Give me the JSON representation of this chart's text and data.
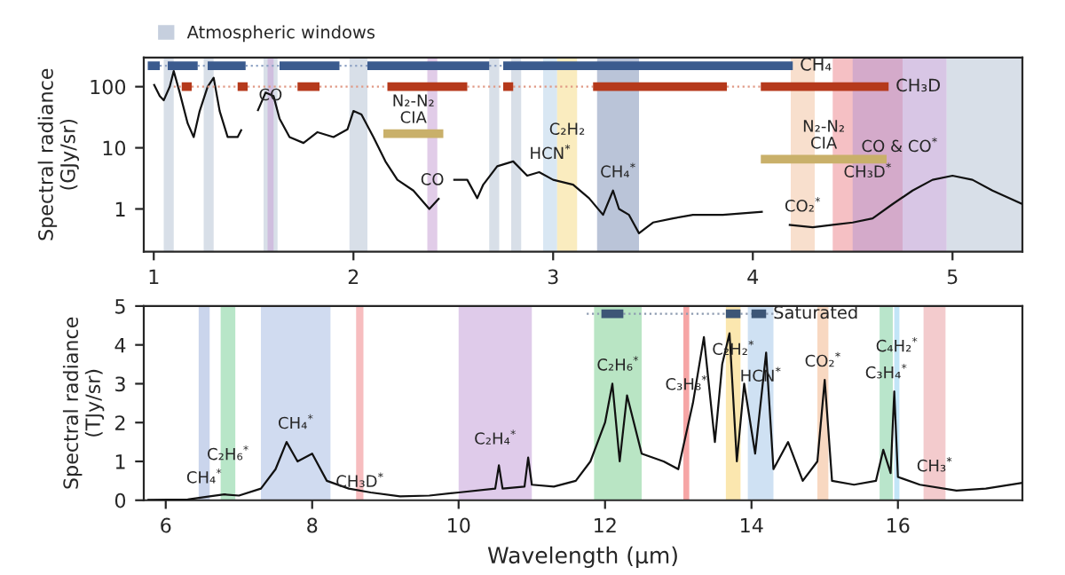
{
  "chart_data": [
    {
      "type": "line",
      "ylabel": "Spectral radiance\n(GJy/sr)",
      "log": "y",
      "xlim": [
        0.95,
        5.35
      ],
      "xticks": [
        1,
        2,
        3,
        4,
        5
      ],
      "ylim": [
        0.2,
        300
      ],
      "yticks": [
        1,
        10,
        100
      ],
      "grid": false,
      "legend": "top left",
      "marker": "none",
      "series": [
        {
          "color": "#111111",
          "x": [
            1.0,
            1.03,
            1.05,
            1.08,
            1.1,
            1.13,
            1.17,
            1.2,
            1.23,
            1.27,
            1.3,
            1.33,
            1.37,
            1.42,
            1.44,
            1.47,
            1.52,
            1.56,
            1.6,
            1.63,
            1.68,
            1.75,
            1.82,
            1.9,
            1.97,
            2.0,
            2.04,
            2.1,
            2.16,
            2.22,
            2.3,
            2.38,
            2.43,
            2.46,
            2.5,
            2.57,
            2.62,
            2.65,
            2.72,
            2.8,
            2.87,
            2.93,
            3.0,
            3.1,
            3.18,
            3.25,
            3.3,
            3.33,
            3.38,
            3.43,
            3.5,
            3.6,
            3.7,
            3.85,
            4.05,
            4.12,
            4.18,
            4.3,
            4.4,
            4.5,
            4.6,
            4.7,
            4.8,
            4.9,
            5.0,
            5.1,
            5.2,
            5.35
          ],
          "values": [
            110,
            70,
            60,
            100,
            180,
            80,
            25,
            15,
            40,
            100,
            140,
            40,
            15,
            15,
            20,
            null,
            40,
            80,
            70,
            30,
            15,
            12,
            18,
            15,
            20,
            40,
            35,
            15,
            6,
            3,
            2,
            1,
            1.5,
            null,
            3,
            3,
            1.5,
            2.5,
            5,
            6,
            3.5,
            4,
            3,
            2.5,
            1.5,
            0.8,
            2,
            1,
            0.8,
            0.4,
            0.6,
            0.7,
            0.8,
            0.8,
            0.9,
            null,
            0.55,
            0.5,
            0.55,
            0.6,
            0.7,
            1.2,
            2,
            3,
            3.5,
            3,
            2,
            1.2
          ]
        },
        {
          "color": "#8fa3c4",
          "line_style": "dotted",
          "x": [
            1.03,
            1.07,
            1.075,
            1.22,
            1.27,
            1.275,
            1.46,
            1.63,
            1.635,
            1.93,
            2.07,
            2.075,
            2.68,
            2.75
          ],
          "values": [
            220,
            220,
            null,
            220,
            220,
            null,
            220,
            220,
            null,
            220,
            220,
            null,
            220,
            220
          ]
        },
        {
          "color": "#3b5b8e",
          "name": "CH₄",
          "x": [
            0.97,
            1.03,
            1.035,
            1.07,
            1.22,
            1.225,
            1.27,
            1.46,
            1.465,
            1.63,
            1.93,
            1.935,
            2.07,
            2.68,
            2.685,
            2.75,
            4.2
          ],
          "values": [
            220,
            220,
            null,
            220,
            220,
            null,
            220,
            220,
            null,
            220,
            220,
            null,
            220,
            220,
            null,
            220,
            220
          ]
        },
        {
          "color": "#e09a86",
          "line_style": "dotted",
          "x": [
            1.1,
            1.14,
            1.145,
            1.19,
            1.42,
            1.425,
            1.47,
            1.72,
            1.725,
            1.83,
            2.17,
            2.175,
            2.57,
            2.75,
            2.755,
            2.8,
            3.2,
            3.205,
            3.87,
            4.04
          ],
          "values": [
            100,
            100,
            null,
            100,
            100,
            null,
            100,
            100,
            null,
            100,
            100,
            null,
            100,
            100,
            null,
            100,
            100,
            null,
            100,
            100
          ]
        },
        {
          "color": "#b5391b",
          "name": "CH₃D",
          "x": [
            1.14,
            1.19,
            1.195,
            1.42,
            1.47,
            1.475,
            1.72,
            1.83,
            1.835,
            2.17,
            2.57,
            2.575,
            2.75,
            2.8,
            2.805,
            3.2,
            3.87,
            3.875,
            4.04,
            4.68
          ],
          "values": [
            100,
            100,
            null,
            100,
            100,
            null,
            100,
            100,
            null,
            100,
            100,
            null,
            100,
            100,
            null,
            100,
            100,
            null,
            100,
            100
          ]
        },
        {
          "color": "#c9b06a",
          "name": "N₂-N₂\nCIA",
          "x": [
            2.15,
            2.45
          ],
          "values": [
            17,
            17
          ]
        },
        {
          "color": "#c9b06a",
          "name": "N₂-N₂\nCIA",
          "x": [
            4.04,
            4.67
          ],
          "values": [
            6.5,
            6.5
          ]
        }
      ],
      "bands": [
        {
          "axis": "x",
          "from": 1.05,
          "to": 1.1,
          "color": "#b8c4d6",
          "label": "Atmospheric windows"
        },
        {
          "axis": "x",
          "from": 1.25,
          "to": 1.3,
          "color": "#b8c4d6"
        },
        {
          "axis": "x",
          "from": 1.55,
          "to": 1.62,
          "color": "#b8c4d6"
        },
        {
          "axis": "x",
          "from": 1.98,
          "to": 2.07,
          "color": "#b8c4d6"
        },
        {
          "axis": "x",
          "from": 2.68,
          "to": 2.73,
          "color": "#b8c4d6"
        },
        {
          "axis": "x",
          "from": 2.79,
          "to": 2.84,
          "color": "#b8c4d6"
        },
        {
          "axis": "x",
          "from": 4.97,
          "to": 5.35,
          "color": "#b8c4d6"
        },
        {
          "axis": "x",
          "from": 1.57,
          "to": 1.6,
          "color": "#c9a3d6",
          "label": "CO"
        },
        {
          "axis": "x",
          "from": 2.37,
          "to": 2.42,
          "color": "#c9a3d6",
          "label": "CO"
        },
        {
          "axis": "x",
          "from": 2.95,
          "to": 3.02,
          "color": "#b9d3ea",
          "label": "HCN$^{*}$"
        },
        {
          "axis": "x",
          "from": 3.02,
          "to": 3.12,
          "color": "#f5dc8a",
          "label": "C₂H₂"
        },
        {
          "axis": "x",
          "from": 3.22,
          "to": 3.43,
          "color": "#8293b8",
          "label": "CH₄$^{*}$"
        },
        {
          "axis": "x",
          "from": 4.19,
          "to": 4.31,
          "color": "#f2c4a4",
          "label": "CO₂$^{*}$"
        },
        {
          "axis": "x",
          "from": 4.4,
          "to": 4.75,
          "color": "#ec8d93",
          "label": "CH₃D$^{*}$"
        },
        {
          "axis": "x",
          "from": 4.5,
          "to": 4.97,
          "color": "#b898d0",
          "label": "CO & CO$^{*}$"
        }
      ]
    },
    {
      "type": "line",
      "xlabel": "Wavelength (µm)",
      "ylabel": "Spectral radiance\n(TJy/sr)",
      "xlim": [
        5.7,
        17.7
      ],
      "xticks": [
        6,
        8,
        10,
        12,
        14,
        16
      ],
      "ylim": [
        0,
        5
      ],
      "yticks": [
        0,
        1,
        2,
        3,
        4,
        5
      ],
      "grid": false,
      "legend": false,
      "marker": "none",
      "series": [
        {
          "color": "#111111",
          "x": [
            5.75,
            6.3,
            6.6,
            6.8,
            7.0,
            7.3,
            7.5,
            7.65,
            7.8,
            8.0,
            8.2,
            8.5,
            8.8,
            9.2,
            9.6,
            10.0,
            10.5,
            10.55,
            10.6,
            10.9,
            10.95,
            11.0,
            11.3,
            11.6,
            11.8,
            12.0,
            12.1,
            12.2,
            12.3,
            12.5,
            12.8,
            13.0,
            13.2,
            13.35,
            13.5,
            13.6,
            13.7,
            13.8,
            13.9,
            14.05,
            14.2,
            14.3,
            14.5,
            14.7,
            14.9,
            15.0,
            15.1,
            15.4,
            15.7,
            15.8,
            15.9,
            15.95,
            16.0,
            16.3,
            16.8,
            17.2,
            17.7
          ],
          "values": [
            0.01,
            0.02,
            0.1,
            0.15,
            0.12,
            0.3,
            0.8,
            1.5,
            1.0,
            1.2,
            0.5,
            0.3,
            0.2,
            0.1,
            0.12,
            0.2,
            0.3,
            0.9,
            0.3,
            0.35,
            1.1,
            0.4,
            0.35,
            0.5,
            1.0,
            2.0,
            3.0,
            1.0,
            2.7,
            1.2,
            1.0,
            0.8,
            2.5,
            4.2,
            1.5,
            3.5,
            4.3,
            1.0,
            3.0,
            1.2,
            3.8,
            0.8,
            1.5,
            0.5,
            1.0,
            3.1,
            0.5,
            0.4,
            0.5,
            1.3,
            0.7,
            2.8,
            0.6,
            0.4,
            0.25,
            0.3,
            0.45
          ]
        },
        {
          "color": "#8d9bb0",
          "line_style": "dotted",
          "x": [
            11.75,
            11.95,
            11.955,
            12.25,
            13.65,
            13.655,
            13.85,
            14.0,
            14.005,
            14.2,
            14.35
          ],
          "values": [
            4.8,
            4.8,
            null,
            4.8,
            4.8,
            null,
            4.8,
            4.8,
            null,
            4.8,
            4.8
          ]
        },
        {
          "color": "#3d5676",
          "name": "Saturated",
          "x": [
            11.95,
            12.25,
            12.255,
            13.65,
            13.85,
            13.855,
            14.0,
            14.2
          ],
          "values": [
            4.8,
            4.8,
            null,
            4.8,
            4.8,
            null,
            4.8,
            4.8
          ]
        }
      ],
      "bands": [
        {
          "axis": "x",
          "from": 6.45,
          "to": 6.6,
          "color": "#9fb3dd",
          "label": "CH₄$^{*}$"
        },
        {
          "axis": "x",
          "from": 6.75,
          "to": 6.95,
          "color": "#7dd19a",
          "label": "C₂H₆$^{*}$"
        },
        {
          "axis": "x",
          "from": 7.3,
          "to": 8.25,
          "color": "#a9bde3",
          "label": "CH₄$^{*}$"
        },
        {
          "axis": "x",
          "from": 8.6,
          "to": 8.7,
          "color": "#f0868a",
          "label": "CH₃D$^{*}$"
        },
        {
          "axis": "x",
          "from": 10.0,
          "to": 11.0,
          "color": "#c4a1d8",
          "label": "C₂H₄$^{*}$"
        },
        {
          "axis": "x",
          "from": 11.85,
          "to": 12.5,
          "color": "#7fcf93",
          "label": "C₂H₆$^{*}$"
        },
        {
          "axis": "x",
          "from": 13.07,
          "to": 13.15,
          "color": "#ef5b5b",
          "label": "C₃H₈$^{*}$"
        },
        {
          "axis": "x",
          "from": 13.65,
          "to": 13.85,
          "color": "#f7d36d",
          "label": "C₂H₂$^{*}$"
        },
        {
          "axis": "x",
          "from": 13.95,
          "to": 14.3,
          "color": "#a8c8ea",
          "label": "HCN$^{*}$"
        },
        {
          "axis": "x",
          "from": 14.9,
          "to": 15.05,
          "color": "#f3b88e",
          "label": "CO₂$^{*}$"
        },
        {
          "axis": "x",
          "from": 15.75,
          "to": 15.93,
          "color": "#7fd0a0",
          "label": "C₃H₄$^{*}$"
        },
        {
          "axis": "x",
          "from": 15.95,
          "to": 16.02,
          "color": "#8fd0f0",
          "label": "C₄H₂$^{*}$"
        },
        {
          "axis": "x",
          "from": 16.35,
          "to": 16.65,
          "color": "#eaa0a4",
          "label": "CH₃$^{*}$"
        }
      ]
    }
  ]
}
